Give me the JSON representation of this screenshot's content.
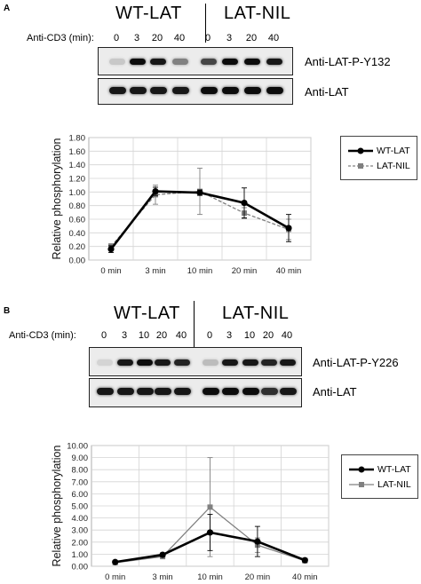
{
  "panels": [
    {
      "id": "A",
      "letter": "A",
      "wt_label": "WT-LAT",
      "nil_label": "LAT-NIL",
      "treatment_label": "Anti-CD3 (min):",
      "lanes": [
        "0",
        "3",
        "20",
        "40",
        "0",
        "3",
        "20",
        "40"
      ],
      "blot_labels": [
        "Anti-LAT-P-Y132",
        "Anti-LAT"
      ],
      "legend": [
        "WT-LAT",
        "LAT-NIL"
      ],
      "chart_data": {
        "type": "line",
        "ylabel": "Relative phosphorylation",
        "categories": [
          "0 min",
          "3 min",
          "10 min",
          "20 min",
          "40 min"
        ],
        "ylim": [
          0,
          1.8
        ],
        "yticks": [
          "0.00",
          "0.20",
          "0.40",
          "0.60",
          "0.80",
          "1.00",
          "1.20",
          "1.40",
          "1.60",
          "1.80"
        ],
        "grid": true,
        "series": [
          {
            "name": "WT-LAT",
            "values": [
              0.16,
              1.01,
              0.99,
              0.84,
              0.47
            ],
            "err": [
              0.05,
              0.06,
              0.04,
              0.22,
              0.2
            ],
            "color": "#000000",
            "style": "solid"
          },
          {
            "name": "LAT-NIL",
            "values": [
              0.2,
              0.96,
              1.01,
              0.69,
              0.45
            ],
            "err": [
              0.04,
              0.14,
              0.34,
              0.08,
              0.15
            ],
            "color": "#808080",
            "style": "dashed"
          }
        ]
      }
    },
    {
      "id": "B",
      "letter": "B",
      "wt_label": "WT-LAT",
      "nil_label": "LAT-NIL",
      "treatment_label": "Anti-CD3 (min):",
      "lanes": [
        "0",
        "3",
        "10",
        "20",
        "40",
        "0",
        "3",
        "10",
        "20",
        "40"
      ],
      "blot_labels": [
        "Anti-LAT-P-Y226",
        "Anti-LAT"
      ],
      "legend": [
        "WT-LAT",
        "LAT-NIL"
      ],
      "chart_data": {
        "type": "line",
        "ylabel": "Relative phosphorylation",
        "categories": [
          "0 min",
          "3 min",
          "10 min",
          "20 min",
          "40 min"
        ],
        "ylim": [
          0,
          10
        ],
        "yticks": [
          "0.00",
          "1.00",
          "2.00",
          "3.00",
          "4.00",
          "5.00",
          "6.00",
          "7.00",
          "8.00",
          "9.00",
          "10.00"
        ],
        "grid": true,
        "series": [
          {
            "name": "WT-LAT",
            "values": [
              0.35,
              0.95,
              2.8,
              2.05,
              0.5
            ],
            "err": [
              0.1,
              0.15,
              1.5,
              1.25,
              0.15
            ],
            "color": "#000000",
            "style": "solid"
          },
          {
            "name": "LAT-NIL",
            "values": [
              0.3,
              0.8,
              4.9,
              1.75,
              0.45
            ],
            "err": [
              0.1,
              0.1,
              4.1,
              0.6,
              0.1
            ],
            "color": "#808080",
            "style": "solid"
          }
        ]
      }
    }
  ]
}
